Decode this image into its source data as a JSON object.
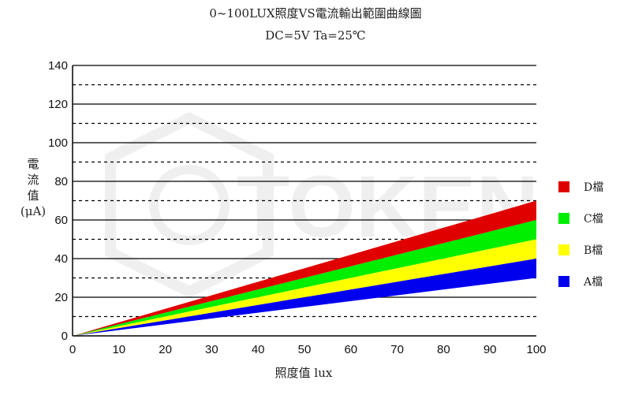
{
  "chart_data": {
    "type": "area",
    "title": "0~100LUX照度VS電流輸出範圍曲線圖",
    "subtitle": "DC=5V   Ta=25℃",
    "xlabel": "照度值   lux",
    "ylabel": [
      "電",
      "流",
      "值",
      "(μA)"
    ],
    "xlim": [
      0,
      100
    ],
    "ylim": [
      0,
      140
    ],
    "xticks": [
      0,
      10,
      20,
      30,
      40,
      50,
      60,
      70,
      80,
      90,
      100
    ],
    "yticks": [
      0,
      20,
      40,
      60,
      80,
      100,
      120,
      140
    ],
    "dashed_gridlines": [
      10,
      30,
      50,
      70,
      90,
      110,
      130
    ],
    "watermark": "TOKEN",
    "series": [
      {
        "name": "D檔",
        "color": "#e00000",
        "x": [
          0,
          100
        ],
        "lower": [
          0,
          60
        ],
        "upper": [
          0,
          70
        ]
      },
      {
        "name": "C檔",
        "color": "#00ee00",
        "x": [
          0,
          100
        ],
        "lower": [
          0,
          50
        ],
        "upper": [
          0,
          60
        ]
      },
      {
        "name": "B檔",
        "color": "#ffff00",
        "x": [
          0,
          100
        ],
        "lower": [
          0,
          40
        ],
        "upper": [
          0,
          50
        ]
      },
      {
        "name": "A檔",
        "color": "#0000ee",
        "x": [
          0,
          100
        ],
        "lower": [
          0,
          30
        ],
        "upper": [
          0,
          40
        ]
      }
    ]
  }
}
